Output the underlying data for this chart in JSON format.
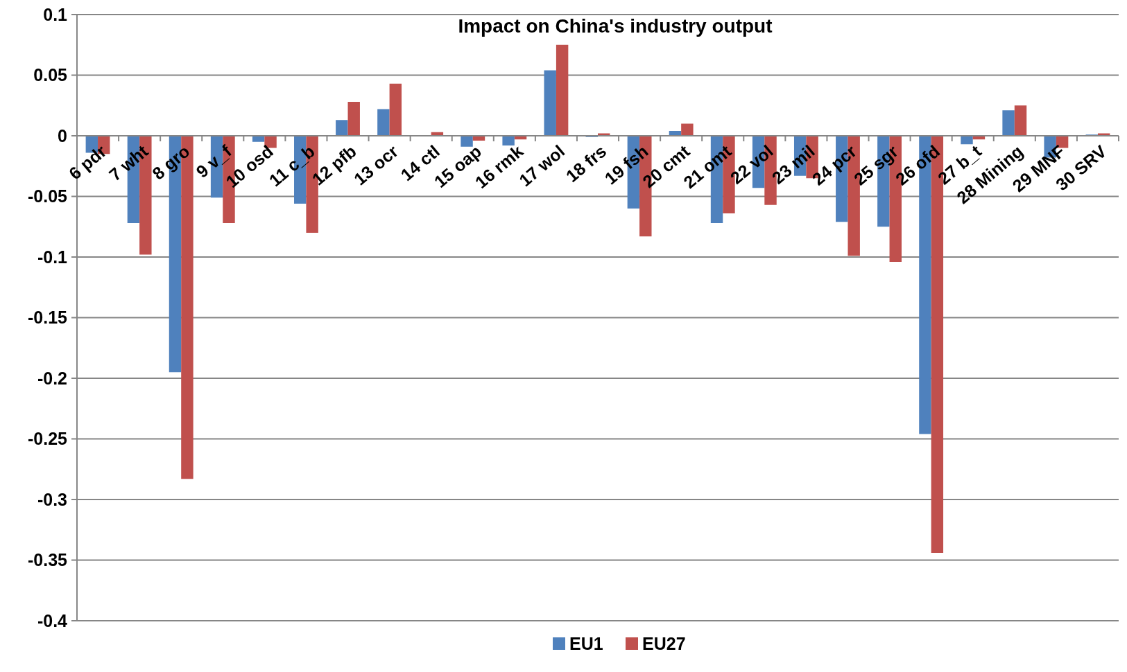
{
  "chart_data": {
    "type": "bar",
    "title": "Impact on China's industry output",
    "categories": [
      "6 pdr",
      "7 wht",
      "8 gro",
      "9 v_f",
      "10 osd",
      "11 c_b",
      "12 pfb",
      "13 ocr",
      "14 ctl",
      "15 oap",
      "16 rmk",
      "17 wol",
      "18 frs",
      "19 fsh",
      "20 cmt",
      "21 omt",
      "22 vol",
      "23 mil",
      "24 pcr",
      "25 sgr",
      "26 ofd",
      "27 b_t",
      "28 Mining",
      "29 MNF",
      "30 SRV"
    ],
    "series": [
      {
        "name": "EU1",
        "color": "#4f81bd",
        "values": [
          -0.014,
          -0.072,
          -0.195,
          -0.051,
          -0.005,
          -0.056,
          0.013,
          0.022,
          0,
          -0.009,
          -0.008,
          0.054,
          -0.001,
          -0.06,
          0.004,
          -0.072,
          -0.043,
          -0.033,
          -0.071,
          -0.075,
          -0.246,
          -0.007,
          0.021,
          -0.018,
          0.001
        ]
      },
      {
        "name": "EU27",
        "color": "#c0504d",
        "values": [
          -0.015,
          -0.098,
          -0.283,
          -0.072,
          -0.01,
          -0.08,
          0.028,
          0.043,
          0.003,
          -0.004,
          -0.003,
          0.075,
          0.002,
          -0.083,
          0.01,
          -0.064,
          -0.057,
          -0.035,
          -0.099,
          -0.104,
          -0.344,
          -0.003,
          0.025,
          -0.01,
          0.002
        ]
      }
    ],
    "ylim": [
      -0.4,
      0.1
    ],
    "yticks": [
      -0.4,
      -0.35,
      -0.3,
      -0.25,
      -0.2,
      -0.15,
      -0.1,
      -0.05,
      0,
      0.05,
      0.1
    ],
    "grid": "y",
    "legend": "bottom"
  }
}
